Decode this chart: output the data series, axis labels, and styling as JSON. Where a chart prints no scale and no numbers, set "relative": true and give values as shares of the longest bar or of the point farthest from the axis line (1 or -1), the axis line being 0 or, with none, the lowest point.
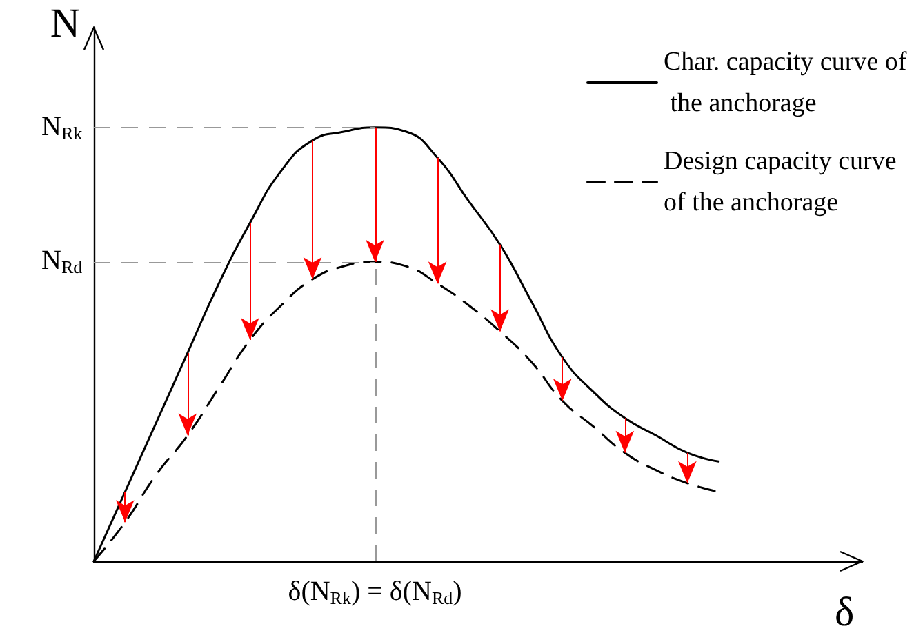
{
  "chart_data": {
    "type": "line",
    "relative": true,
    "xlabel": "δ",
    "ylabel": "N",
    "categories": [
      null,
      null,
      null,
      null,
      null,
      null,
      null,
      null,
      null,
      null,
      null,
      null,
      null,
      null,
      null,
      null,
      null,
      null,
      null,
      null,
      null
    ],
    "series": [
      {
        "name": "Char. capacity curve of the anchorage",
        "color": "#000000",
        "line_style": "solid",
        "values": [
          0,
          0.16,
          0.32,
          0.48,
          0.64,
          0.78,
          0.9,
          0.97,
          0.99,
          1,
          0.99,
          0.93,
          0.83,
          0.73,
          0.6,
          0.47,
          0.39,
          0.33,
          0.29,
          0.25,
          0.23
        ]
      },
      {
        "name": "Design capacity curve of the anchorage",
        "color": "#000000",
        "line_style": "dashed",
        "values": [
          0,
          0.09,
          0.2,
          0.29,
          0.4,
          0.51,
          0.59,
          0.65,
          0.68,
          0.69,
          0.68,
          0.64,
          0.59,
          0.53,
          0.46,
          0.37,
          0.31,
          0.25,
          0.21,
          0.18,
          0.16
        ]
      }
    ],
    "ref_lines": [
      {
        "axis": "y",
        "value": 1,
        "label": "N$_{Rk}$",
        "color": "#999999",
        "line_style": "dashed"
      },
      {
        "axis": "y",
        "value": 0.69,
        "label": "N$_{Rd}$",
        "color": "#999999",
        "line_style": "dashed"
      }
    ],
    "annotations": [
      "δ(N$_{Rk}$) = δ(N$_{Rd}$)"
    ],
    "legend": "top right",
    "marker": "none",
    "grid": false
  }
}
